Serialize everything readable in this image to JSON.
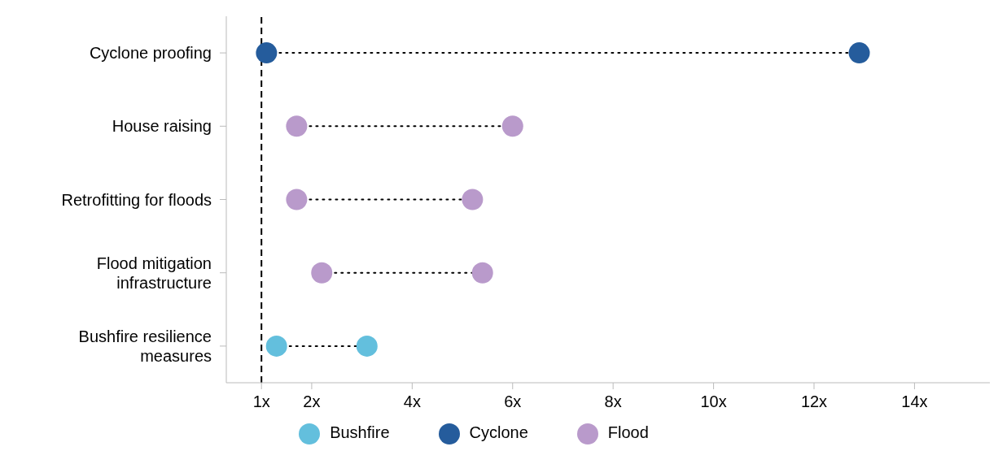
{
  "chart_data": {
    "type": "scatter",
    "orientation": "horizontal",
    "categories": [
      "Cyclone proofing",
      "House raising",
      "Retrofitting for floods",
      "Flood mitigation infrastructure",
      "Bushfire resilience measures"
    ],
    "series": [
      {
        "name": "Bushfire",
        "color": "#63bfdd",
        "values": [
          null,
          null,
          null,
          null,
          1.3
        ]
      },
      {
        "color": "#63bfdd",
        "values": [
          null,
          null,
          null,
          null,
          3.1
        ]
      },
      {
        "name": "Cyclone",
        "color": "#255c9c",
        "values": [
          1.1,
          null,
          null,
          null,
          null
        ]
      },
      {
        "color": "#255c9c",
        "values": [
          12.9,
          null,
          null,
          null,
          null
        ]
      },
      {
        "name": "Flood",
        "color": "#b99acb",
        "values": [
          null,
          1.7,
          1.7,
          2.2,
          null
        ]
      },
      {
        "color": "#b99acb",
        "values": [
          null,
          6,
          5.2,
          5.4,
          null
        ]
      }
    ],
    "xlim": [
      0.3,
      15.5
    ],
    "xticks": [
      {
        "value": 1,
        "label": "1x"
      },
      {
        "value": 2,
        "label": "2x"
      },
      {
        "value": 4,
        "label": "4x"
      },
      {
        "value": 6,
        "label": "6x"
      },
      {
        "value": 8,
        "label": "8x"
      },
      {
        "value": 10,
        "label": "10x"
      },
      {
        "value": 12,
        "label": "12x"
      },
      {
        "value": 14,
        "label": "14x"
      }
    ],
    "ref_lines": [
      {
        "axis": "x",
        "value": 1,
        "color": "#000000",
        "line_style": "dashed"
      }
    ],
    "line_style": "dotted",
    "marker": "circle",
    "legend": "bottom",
    "grid": false
  }
}
